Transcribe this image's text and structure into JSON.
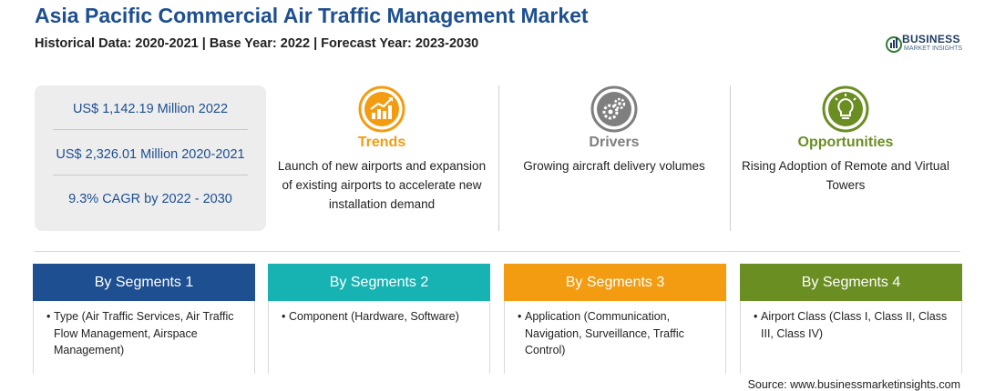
{
  "header": {
    "title": "Asia Pacific Commercial Air Traffic Management Market",
    "subtitle": "Historical Data: 2020-2021 | Base Year: 2022 | Forecast Year: 2023-2030"
  },
  "logo": {
    "line1": "BUSINESS",
    "line2": "MARKET INSIGHTS"
  },
  "stats": [
    "US$ 1,142.19 Million 2022",
    "US$ 2,326.01 Million 2020-2021",
    "9.3% CAGR by 2022 - 2030"
  ],
  "highlights": [
    {
      "icon": "trend-chart-icon",
      "heading": "Trends",
      "color": "#f39c12",
      "text": "Launch of new airports and expansion of existing airports to accelerate new installation demand"
    },
    {
      "icon": "gears-icon",
      "heading": "Drivers",
      "color": "#7f7f7f",
      "text": "Growing aircraft delivery volumes"
    },
    {
      "icon": "lightbulb-icon",
      "heading": "Opportunities",
      "color": "#6b8e23",
      "text": "Rising Adoption of Remote and Virtual Towers"
    }
  ],
  "segments": [
    {
      "heading": "By Segments 1",
      "color": "#1d4f91",
      "item": "Type (Air Traffic Services, Air Traffic Flow Management, Airspace Management)"
    },
    {
      "heading": "By Segments 2",
      "color": "#17b3b3",
      "item": "Component (Hardware, Software)"
    },
    {
      "heading": "By Segments 3",
      "color": "#f39c12",
      "item": "Application (Communication, Navigation, Surveillance, Traffic Control)"
    },
    {
      "heading": "By Segments 4",
      "color": "#6b8e23",
      "item": "Airport Class (Class I, Class II, Class III, Class IV)"
    }
  ],
  "source": "Source: www.businessmarketinsights.com"
}
